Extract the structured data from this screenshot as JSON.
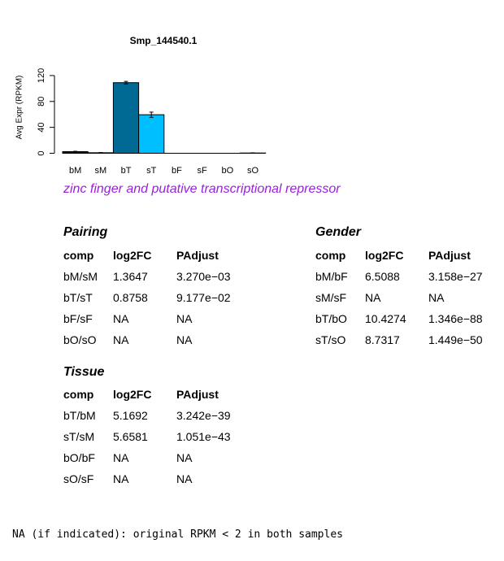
{
  "chart_data": {
    "type": "bar",
    "title": "Smp_144540.1",
    "ylabel": "Avg Expr (RPKM)",
    "xlabel": "",
    "categories": [
      "bM",
      "sM",
      "bT",
      "sT",
      "bF",
      "sF",
      "bO",
      "sO"
    ],
    "values": [
      2.5,
      0.8,
      109,
      59.5,
      0,
      0,
      0,
      0.4
    ],
    "errors": [
      0.6,
      0.3,
      2,
      4,
      0,
      0,
      0,
      0.3
    ],
    "colors": [
      "#0b0b55",
      "#0b0b55",
      "#006994",
      "#00bfff",
      "#006994",
      "#00bfff",
      "#006994",
      "#00bfff"
    ],
    "ylim": [
      0,
      140
    ],
    "yticks": [
      0,
      40,
      80,
      120
    ],
    "grid": false
  },
  "subtitle": "zinc finger and putative transcriptional repressor",
  "tables": {
    "pairing": {
      "title": "Pairing",
      "headers": [
        "comp",
        "log2FC",
        "PAdjust"
      ],
      "rows": [
        [
          "bM/sM",
          "1.3647",
          "3.270e−03"
        ],
        [
          "bT/sT",
          "0.8758",
          "9.177e−02"
        ],
        [
          "bF/sF",
          "NA",
          "NA"
        ],
        [
          "bO/sO",
          "NA",
          "NA"
        ]
      ]
    },
    "gender": {
      "title": "Gender",
      "headers": [
        "comp",
        "log2FC",
        "PAdjust"
      ],
      "rows": [
        [
          "bM/bF",
          "6.5088",
          "3.158e−27"
        ],
        [
          "sM/sF",
          "NA",
          "NA"
        ],
        [
          "bT/bO",
          "10.4274",
          "1.346e−88"
        ],
        [
          "sT/sO",
          "8.7317",
          "1.449e−50"
        ]
      ]
    },
    "tissue": {
      "title": "Tissue",
      "headers": [
        "comp",
        "log2FC",
        "PAdjust"
      ],
      "rows": [
        [
          "bT/bM",
          "5.1692",
          "3.242e−39"
        ],
        [
          "sT/sM",
          "5.6581",
          "1.051e−43"
        ],
        [
          "bO/bF",
          "NA",
          "NA"
        ],
        [
          "sO/sF",
          "NA",
          "NA"
        ]
      ]
    }
  },
  "footnote": "NA (if indicated): original RPKM < 2 in both samples"
}
